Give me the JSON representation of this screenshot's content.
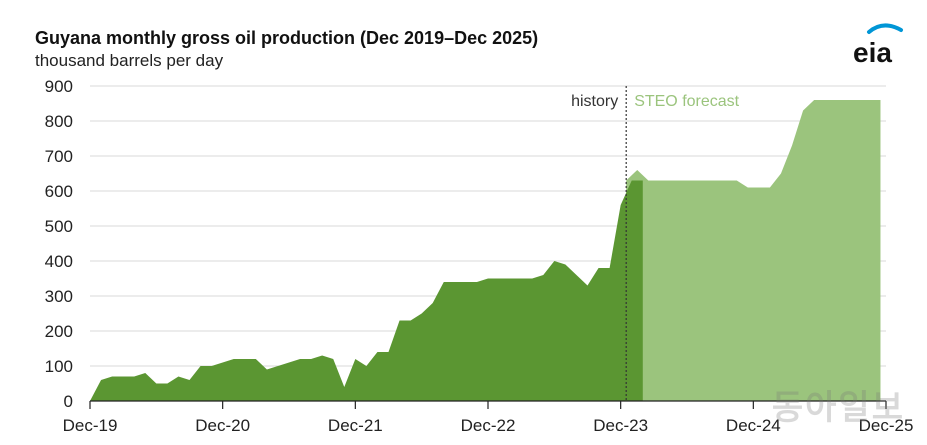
{
  "header": {
    "title": "Guyana monthly gross oil production (Dec 2019–Dec 2025)",
    "subtitle": "thousand barrels per day",
    "logo_text": "eia",
    "watermark": "동아일보"
  },
  "colors": {
    "history": "#5b9632",
    "forecast": "#9bc47d",
    "grid": "#d9d9d9",
    "axis": "#222222",
    "divider": "#333333",
    "anno_history": "#333333",
    "anno_forecast": "#9bc47d",
    "logo_blue": "#0096d6"
  },
  "chart_data": {
    "type": "area",
    "title": "Guyana monthly gross oil production (Dec 2019–Dec 2025)",
    "ylabel": "thousand barrels per day",
    "xlabel": "",
    "ylim": [
      0,
      900
    ],
    "yticks": [
      0,
      100,
      200,
      300,
      400,
      500,
      600,
      700,
      800,
      900
    ],
    "xticks": [
      "Dec-19",
      "Dec-20",
      "Dec-21",
      "Dec-22",
      "Dec-23",
      "Dec-24",
      "Dec-25"
    ],
    "grid": true,
    "annotations": {
      "history": "history",
      "forecast": "STEO forecast",
      "divider_month": 48.5
    },
    "series": [
      {
        "name": "history",
        "x_start": "Dec-19",
        "values": [
          0,
          60,
          70,
          70,
          70,
          80,
          50,
          50,
          70,
          60,
          100,
          100,
          110,
          120,
          120,
          120,
          90,
          100,
          110,
          120,
          120,
          130,
          120,
          40,
          120,
          100,
          140,
          140,
          230,
          230,
          250,
          280,
          340,
          340,
          340,
          340,
          350,
          350,
          350,
          350,
          350,
          360,
          400,
          390,
          360,
          330,
          380,
          380,
          560,
          630,
          630
        ]
      },
      {
        "name": "STEO forecast",
        "x_start": "Jan-24",
        "values": [
          630,
          660,
          630,
          630,
          630,
          630,
          630,
          630,
          630,
          630,
          630,
          610,
          610,
          610,
          650,
          730,
          830,
          860,
          860,
          860,
          860,
          860,
          860,
          860
        ]
      }
    ]
  }
}
